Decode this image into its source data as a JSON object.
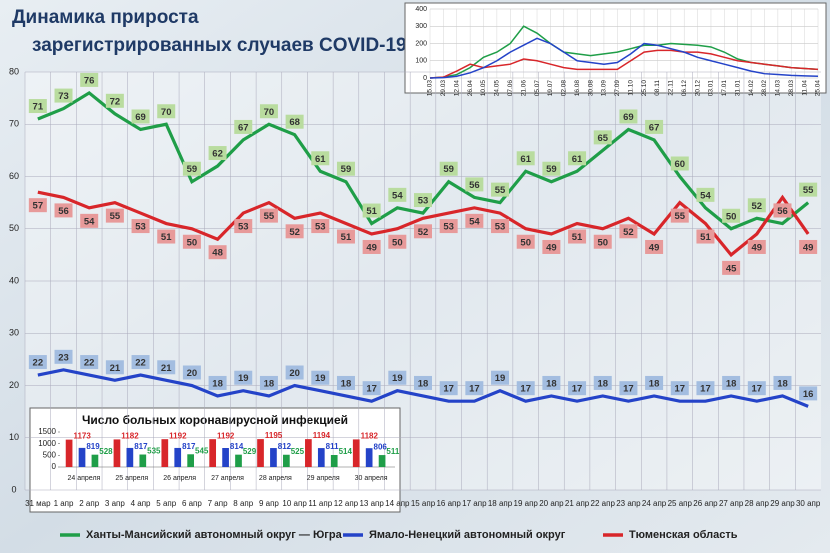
{
  "chart_data": [
    {
      "type": "line",
      "title": [
        "Динамика прироста",
        "зарегистрированных случаев COVID-19"
      ],
      "categories": [
        "31 мар",
        "1 апр",
        "2 апр",
        "3 апр",
        "4 апр",
        "5 апр",
        "6 апр",
        "7 апр",
        "8 апр",
        "9 апр",
        "10 апр",
        "11 апр",
        "12 апр",
        "13 апр",
        "14 апр",
        "15 апр",
        "16 апр",
        "17 апр",
        "18 апр",
        "19 апр",
        "20 апр",
        "21 апр",
        "22 апр",
        "23 апр",
        "24 апр",
        "25 апр",
        "26 апр",
        "27 апр",
        "28 апр",
        "29 апр",
        "30 апр"
      ],
      "series": [
        {
          "name": "Ханты-Мансийский автономный округ — Югра",
          "color": "#1f9e48",
          "values": [
            71,
            73,
            76,
            72,
            69,
            70,
            59,
            62,
            67,
            70,
            68,
            61,
            59,
            51,
            54,
            53,
            59,
            56,
            55,
            61,
            59,
            61,
            65,
            69,
            67,
            60,
            54,
            50,
            52,
            51,
            55
          ]
        },
        {
          "name": "Ямало-Ненецкий автономный округ",
          "color": "#2443c8",
          "values": [
            22,
            23,
            22,
            21,
            22,
            21,
            20,
            18,
            19,
            18,
            20,
            19,
            18,
            17,
            19,
            18,
            17,
            17,
            19,
            17,
            18,
            17,
            18,
            17,
            18,
            17,
            17,
            18,
            17,
            18,
            16
          ]
        },
        {
          "name": "Тюменская область",
          "color": "#d8262a",
          "values": [
            57,
            56,
            54,
            55,
            53,
            51,
            50,
            48,
            53,
            55,
            52,
            53,
            51,
            49,
            50,
            52,
            53,
            54,
            53,
            50,
            49,
            51,
            50,
            52,
            49,
            55,
            51,
            45,
            49,
            56,
            49
          ]
        }
      ],
      "ylim": [
        0,
        80
      ],
      "yticks": [
        0,
        10,
        20,
        30,
        40,
        50,
        60,
        70,
        80
      ],
      "grid": true
    },
    {
      "type": "line",
      "categories": [
        "15.03",
        "29.03",
        "12.04",
        "26.04",
        "10.05",
        "24.05",
        "07.06",
        "21.06",
        "05.07",
        "19.07",
        "02.08",
        "16.08",
        "30.08",
        "13.09",
        "27.09",
        "11.10",
        "25.10",
        "08.11",
        "22.11",
        "06.12",
        "20.12",
        "03.01",
        "17.01",
        "31.01",
        "14.02",
        "28.02",
        "14.03",
        "28.03",
        "11.04",
        "25.04"
      ],
      "series": [
        {
          "color": "#1f9e48",
          "values": [
            0,
            5,
            20,
            60,
            120,
            150,
            200,
            300,
            260,
            200,
            150,
            140,
            130,
            140,
            150,
            170,
            190,
            190,
            200,
            195,
            190,
            180,
            150,
            110,
            90,
            80,
            70,
            60,
            55,
            50
          ]
        },
        {
          "color": "#d8262a",
          "values": [
            0,
            5,
            40,
            80,
            60,
            70,
            80,
            110,
            100,
            80,
            60,
            50,
            50,
            50,
            50,
            100,
            150,
            160,
            160,
            150,
            150,
            140,
            120,
            100,
            90,
            80,
            70,
            60,
            55,
            50
          ]
        },
        {
          "color": "#2443c8",
          "values": [
            0,
            2,
            10,
            30,
            60,
            100,
            150,
            190,
            230,
            200,
            150,
            100,
            90,
            80,
            90,
            140,
            200,
            190,
            170,
            150,
            120,
            100,
            80,
            60,
            40,
            25,
            20,
            15,
            12,
            10
          ]
        }
      ],
      "ylim": [
        0,
        400
      ],
      "yticks": [
        0,
        100,
        200,
        300,
        400
      ],
      "grid": true
    },
    {
      "type": "bar",
      "title": "Число больных коронавирусной  инфекцией",
      "categories": [
        "24 апреля",
        "25 апреля",
        "26 апреля",
        "27 апреля",
        "28 апреля",
        "29 апреля",
        "30 апреля"
      ],
      "series": [
        {
          "color": "#d8262a",
          "values": [
            1173,
            1182,
            1192,
            1192,
            1195,
            1194,
            1182
          ]
        },
        {
          "color": "#2443c8",
          "values": [
            819,
            817,
            817,
            814,
            812,
            811,
            806
          ]
        },
        {
          "color": "#1f9e48",
          "values": [
            528,
            535,
            545,
            529,
            525,
            514,
            511
          ]
        }
      ],
      "ylim": [
        0,
        1500
      ],
      "yticks": [
        0,
        500,
        1000,
        1500
      ]
    }
  ]
}
